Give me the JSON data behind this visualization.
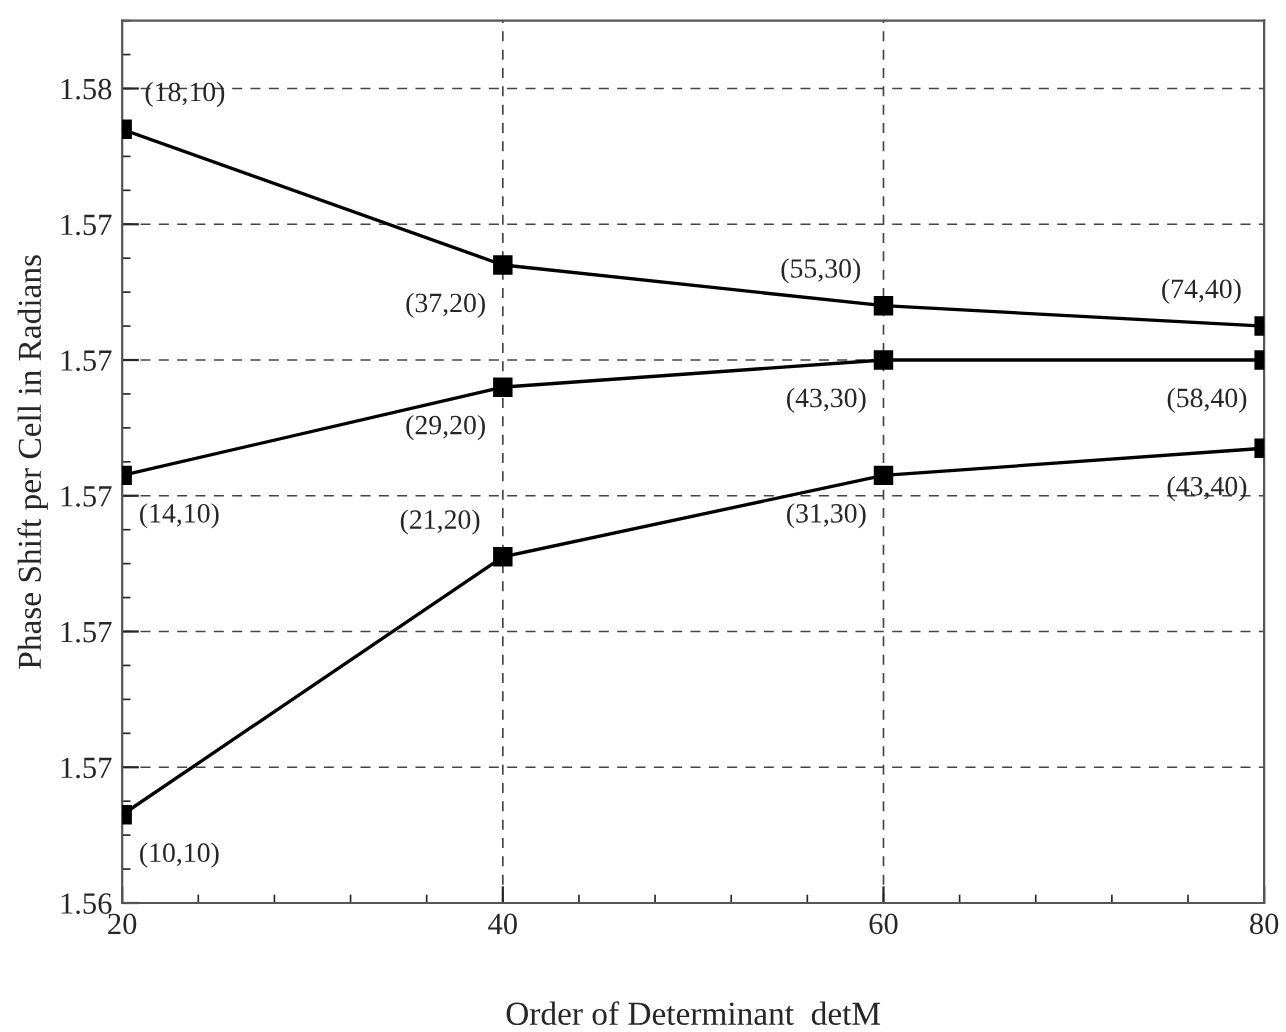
{
  "chart_data": {
    "type": "line",
    "xlabel": "Order of Determinant  detM",
    "ylabel": "Phase Shift per Cell in Radians",
    "x": [
      20,
      40,
      60,
      80
    ],
    "series": [
      {
        "color": "#000000",
        "values": [
          1.5754,
          1.5734,
          1.5728,
          1.5725
        ]
      },
      {
        "color": "#000000",
        "values": [
          1.5703,
          1.5716,
          1.572,
          1.572
        ]
      },
      {
        "color": "#000000",
        "values": [
          1.5653,
          1.5691,
          1.5703,
          1.5707
        ]
      }
    ],
    "xlim": [
      20,
      80
    ],
    "xticks": [
      20,
      40,
      60,
      80
    ],
    "ylim": [
      1.564,
      1.577
    ],
    "yticks": [
      {
        "value": 1.564,
        "label": "1.56"
      },
      {
        "value": 1.566,
        "label": "1.57"
      },
      {
        "value": 1.568,
        "label": "1.57"
      },
      {
        "value": 1.57,
        "label": "1.57"
      },
      {
        "value": 1.572,
        "label": "1.57"
      },
      {
        "value": 1.574,
        "label": "1.57"
      },
      {
        "value": 1.576,
        "label": "1.58"
      }
    ],
    "grid": true,
    "marker": "square",
    "line_style": "solid",
    "legend": false,
    "annotations": [
      {
        "text": "(18,10)",
        "x": 20,
        "y": 1.5754
      },
      {
        "text": "(37,20)",
        "x": 40,
        "y": 1.5734
      },
      {
        "text": "(55,30)",
        "x": 60,
        "y": 1.5728
      },
      {
        "text": "(74,40)",
        "x": 80,
        "y": 1.5725
      },
      {
        "text": "(14,10)",
        "x": 20,
        "y": 1.5703
      },
      {
        "text": "(29,20)",
        "x": 40,
        "y": 1.5716
      },
      {
        "text": "(43,30)",
        "x": 60,
        "y": 1.572
      },
      {
        "text": "(58,40)",
        "x": 80,
        "y": 1.572
      },
      {
        "text": "(10,10)",
        "x": 20,
        "y": 1.5653
      },
      {
        "text": "(21,20)",
        "x": 40,
        "y": 1.5691
      },
      {
        "text": "(31,30)",
        "x": 60,
        "y": 1.5703
      },
      {
        "text": "(43,40)",
        "x": 80,
        "y": 1.5707
      }
    ]
  }
}
